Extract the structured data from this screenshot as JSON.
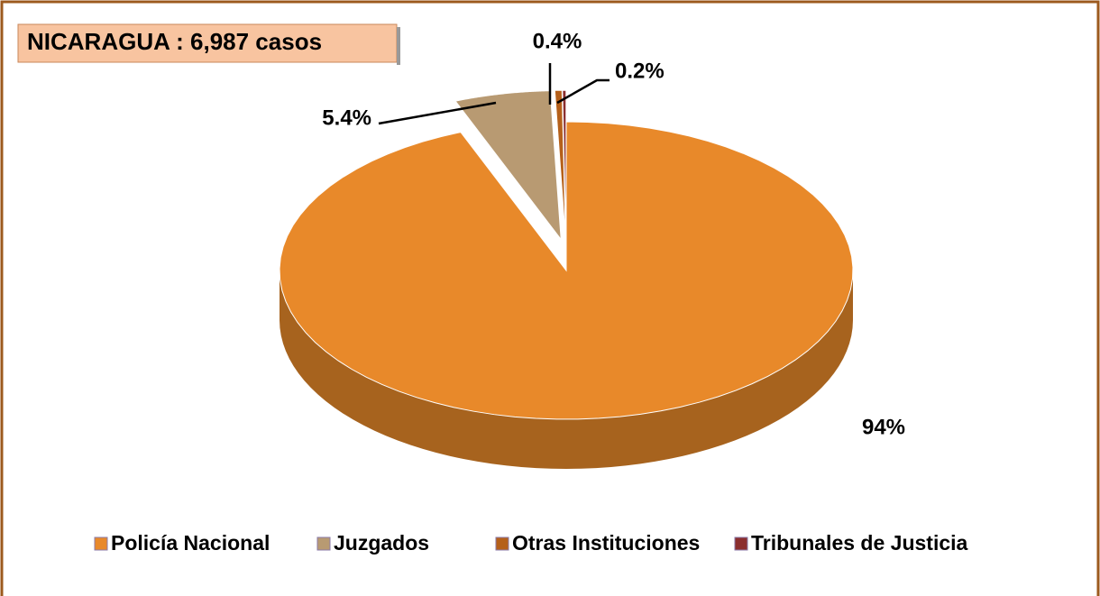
{
  "chart_data": {
    "type": "pie",
    "title": "NICARAGUA : 6,987 casos",
    "categories": [
      "Policía Nacional",
      "Juzgados",
      "Otras Instituciones",
      "Tribunales de Justicia"
    ],
    "values": [
      94,
      5.4,
      0.4,
      0.2
    ],
    "value_labels": [
      "94%",
      "5.4%",
      "0.4%",
      "0.2%"
    ],
    "colors": [
      "#e8892a",
      "#b89a72",
      "#b5601a",
      "#8b2e2e"
    ],
    "legend": "bottom"
  }
}
